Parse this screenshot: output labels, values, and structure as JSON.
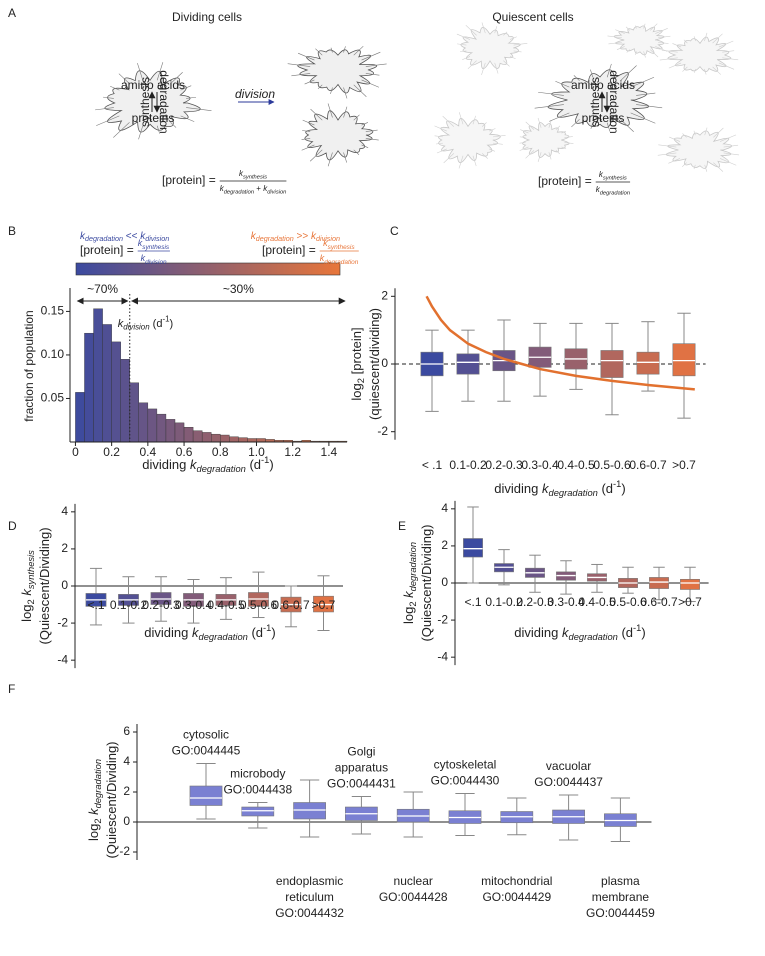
{
  "panel_labels": [
    "A",
    "B",
    "C",
    "D",
    "E",
    "F"
  ],
  "diagram": {
    "left_title": "Dividing cells",
    "right_title": "Quiescent cells",
    "amino_acids": "amino acids",
    "proteins": "proteins",
    "synthesis": "synthesis",
    "degradation": "degradation",
    "division": "division",
    "eq_left": {
      "lhs": "[protein] =",
      "num": [
        {
          "t": "k",
          "s": "i"
        },
        {
          "t": "synthesis",
          "s": "isub"
        }
      ],
      "den": [
        {
          "t": "k",
          "s": "i"
        },
        {
          "t": "degradation",
          "s": "isub"
        },
        {
          "t": " + "
        },
        {
          "t": "k",
          "s": "i"
        },
        {
          "t": "division",
          "s": "isub"
        }
      ]
    },
    "eq_right": {
      "lhs": "[protein] =",
      "num": [
        {
          "t": "k",
          "s": "i"
        },
        {
          "t": "synthesis",
          "s": "isub"
        }
      ],
      "den": [
        {
          "t": "k",
          "s": "i"
        },
        {
          "t": "degradation",
          "s": "isub"
        }
      ]
    },
    "accent_color": "#e07a2e",
    "division_color": "#2b3a9a"
  },
  "chart_data": [
    {
      "type": "histogram",
      "colorbar": {
        "colors": [
          "#3b4aa0",
          "#e8763a"
        ],
        "left": {
          "relation": [
            {
              "t": "k",
              "s": "i"
            },
            {
              "t": "degradation",
              "s": "isub"
            },
            {
              "t": " << "
            },
            {
              "t": "k",
              "s": "i"
            },
            {
              "t": "division",
              "s": "isub"
            }
          ],
          "lhs": "[protein] =",
          "num": [
            {
              "t": "k",
              "s": "i"
            },
            {
              "t": "synthesis",
              "s": "isub"
            }
          ],
          "den": [
            {
              "t": "k",
              "s": "i"
            },
            {
              "t": "division",
              "s": "isub"
            }
          ]
        },
        "right": {
          "relation": [
            {
              "t": "k",
              "s": "i"
            },
            {
              "t": "degradation",
              "s": "isub"
            },
            {
              "t": " >> "
            },
            {
              "t": "k",
              "s": "i"
            },
            {
              "t": "division",
              "s": "isub"
            }
          ],
          "lhs": "[protein] =",
          "num": [
            {
              "t": "k",
              "s": "i"
            },
            {
              "t": "synthesis",
              "s": "isub"
            }
          ],
          "den": [
            {
              "t": "k",
              "s": "i"
            },
            {
              "t": "degradation",
              "s": "isub"
            }
          ]
        }
      },
      "x_label": [
        {
          "t": "dividing "
        },
        {
          "t": "k",
          "s": "i"
        },
        {
          "t": "degradation",
          "s": "isub"
        },
        {
          "t": " (d"
        },
        {
          "t": "-1",
          "s": "sup"
        },
        {
          "t": ")"
        }
      ],
      "y_label": "fraction of population",
      "bins": [
        0,
        0.05,
        0.1,
        0.15,
        0.2,
        0.25,
        0.3,
        0.35,
        0.4,
        0.45,
        0.5,
        0.55,
        0.6,
        0.65,
        0.7,
        0.75,
        0.8,
        0.85,
        0.9,
        0.95,
        1.0,
        1.05,
        1.1,
        1.15,
        1.2,
        1.25,
        1.3,
        1.35,
        1.4,
        1.45,
        1.5
      ],
      "counts": [
        0.057,
        0.125,
        0.153,
        0.135,
        0.115,
        0.095,
        0.068,
        0.045,
        0.038,
        0.032,
        0.026,
        0.022,
        0.017,
        0.013,
        0.011,
        0.009,
        0.008,
        0.006,
        0.005,
        0.004,
        0.004,
        0.003,
        0.002,
        0.002,
        0.001,
        0.002,
        0.001,
        0.001,
        0.001,
        0.001
      ],
      "xlim": [
        -0.03,
        1.5
      ],
      "ylim": [
        0,
        0.17
      ],
      "xticks": [
        0,
        0.2,
        0.4,
        0.6,
        0.8,
        {
          "value": 1,
          "label": "1.0"
        },
        1.2,
        1.4
      ],
      "yticks": [
        0.05,
        {
          "value": 0.1,
          "label": "0.10"
        },
        0.15
      ],
      "division_line": 0.3,
      "division_label": [
        {
          "t": "k",
          "s": "i"
        },
        {
          "t": "division",
          "s": "isub"
        },
        {
          "t": " (d"
        },
        {
          "t": "-1",
          "s": "sup"
        },
        {
          "t": ")"
        }
      ],
      "left_share": "~70%",
      "right_share": "~30%"
    },
    {
      "type": "box",
      "x_label": [
        {
          "t": "dividing "
        },
        {
          "t": "k",
          "s": "i"
        },
        {
          "t": "degradation",
          "s": "isub"
        },
        {
          "t": " (d"
        },
        {
          "t": "-1",
          "s": "sup"
        },
        {
          "t": ")"
        }
      ],
      "y_label": [
        [
          {
            "t": "log"
          },
          {
            "t": "2",
            "s": "sub"
          },
          {
            "t": " [protein]"
          }
        ],
        [
          {
            "t": "(quiescent/dividing)"
          }
        ]
      ],
      "categories": [
        "< .1",
        "0.1-0.2",
        "0.2-0.3",
        "0.3-0.4",
        "0.4-0.5",
        "0.5-0.6",
        "0.6-0.7",
        ">0.7"
      ],
      "boxes": [
        {
          "min": -1.4,
          "q1": -0.35,
          "median": 0,
          "q3": 0.35,
          "max": 1.0
        },
        {
          "min": -1.1,
          "q1": -0.3,
          "median": 0.05,
          "q3": 0.3,
          "max": 1.0
        },
        {
          "min": -1.1,
          "q1": -0.2,
          "median": 0.1,
          "q3": 0.4,
          "max": 1.3
        },
        {
          "min": -0.95,
          "q1": -0.1,
          "median": 0.2,
          "q3": 0.5,
          "max": 1.2
        },
        {
          "min": -0.75,
          "q1": -0.15,
          "median": 0.15,
          "q3": 0.45,
          "max": 1.2
        },
        {
          "min": -1.5,
          "q1": -0.4,
          "median": 0.1,
          "q3": 0.4,
          "max": 1.2
        },
        {
          "min": -0.8,
          "q1": -0.3,
          "median": 0.05,
          "q3": 0.35,
          "max": 1.25
        },
        {
          "min": -1.6,
          "q1": -0.35,
          "median": 0.1,
          "q3": 0.6,
          "max": 1.5
        }
      ],
      "ylim": [
        -2.6,
        2.6
      ],
      "yticks": [
        -2,
        0,
        2
      ],
      "reference_line": {
        "value": 0,
        "style": "dashed"
      },
      "color_range": [
        "#3b4aa0",
        "#e07244"
      ],
      "curve": {
        "color": "#e2712f",
        "x": [
          -0.15,
          0,
          0.25,
          0.5,
          0.75,
          1,
          1.5,
          2,
          2.5,
          3,
          4,
          5,
          6,
          7,
          7.3
        ],
        "values": [
          2.0,
          1.7,
          1.3,
          1.0,
          0.8,
          0.6,
          0.35,
          0.15,
          0,
          -0.15,
          -0.35,
          -0.5,
          -0.62,
          -0.72,
          -0.75
        ]
      }
    },
    {
      "type": "box",
      "x_label": [
        {
          "t": "dividing "
        },
        {
          "t": "k",
          "s": "i"
        },
        {
          "t": "degradation",
          "s": "isub"
        },
        {
          "t": " (d"
        },
        {
          "t": "-1",
          "s": "sup"
        },
        {
          "t": ")"
        }
      ],
      "y_label": [
        [
          {
            "t": "log"
          },
          {
            "t": "2",
            "s": "sub"
          },
          {
            "t": " "
          },
          {
            "t": "k",
            "s": "i"
          },
          {
            "t": "synthesis",
            "s": "isub"
          }
        ],
        [
          {
            "t": "(Quiescent/Dividing)"
          }
        ]
      ],
      "categories": [
        "<.1",
        "0.1-0.2",
        "0.2-0.3",
        "0.3-0.4",
        "0.4-0.5",
        "0.5-0.6",
        "0.6-0.7",
        ">0.7"
      ],
      "boxes": [
        {
          "min": -2.1,
          "q1": -1.1,
          "median": -0.75,
          "q3": -0.4,
          "max": 0.95
        },
        {
          "min": -2.0,
          "q1": -1.05,
          "median": -0.75,
          "q3": -0.45,
          "max": 0.5
        },
        {
          "min": -1.9,
          "q1": -1.0,
          "median": -0.7,
          "q3": -0.35,
          "max": 0.5
        },
        {
          "min": -2.0,
          "q1": -1.1,
          "median": -0.75,
          "q3": -0.4,
          "max": 0.35
        },
        {
          "min": -1.8,
          "q1": -1.05,
          "median": -0.75,
          "q3": -0.45,
          "max": 0.45
        },
        {
          "min": -1.7,
          "q1": -1.1,
          "median": -0.7,
          "q3": -0.35,
          "max": 0.75
        },
        {
          "min": -2.2,
          "q1": -1.4,
          "median": -1.0,
          "q3": -0.6,
          "max": 0.0
        },
        {
          "min": -2.4,
          "q1": -1.4,
          "median": -1.0,
          "q3": -0.55,
          "max": 0.55
        }
      ],
      "ylim": [
        -4.8,
        4.8
      ],
      "yticks": [
        -4,
        -2,
        0,
        2,
        4
      ],
      "reference_line": {
        "value": 0,
        "style": "solid"
      },
      "color_range": [
        "#3b4aa0",
        "#e07244"
      ]
    },
    {
      "type": "box",
      "x_label": [
        {
          "t": "dividing "
        },
        {
          "t": "k",
          "s": "i"
        },
        {
          "t": "degradation",
          "s": "isub"
        },
        {
          "t": " (d"
        },
        {
          "t": "-1",
          "s": "sup"
        },
        {
          "t": ")"
        }
      ],
      "y_label": [
        [
          {
            "t": "log"
          },
          {
            "t": "2",
            "s": "sub"
          },
          {
            "t": " "
          },
          {
            "t": "k",
            "s": "i"
          },
          {
            "t": "degradation",
            "s": "isub"
          }
        ],
        [
          {
            "t": "(Quiescent/Dividing)"
          }
        ]
      ],
      "categories": [
        "<.1",
        "0.1-0.2",
        "0.2-0.3",
        "0.3-0.4",
        "0.4-0.5",
        "0.5-0.6",
        "0.6-0.7",
        ">0.7"
      ],
      "boxes": [
        {
          "min": 0.0,
          "q1": 1.4,
          "median": 1.85,
          "q3": 2.4,
          "max": 4.1
        },
        {
          "min": -0.1,
          "q1": 0.6,
          "median": 0.85,
          "q3": 1.05,
          "max": 1.8
        },
        {
          "min": -0.5,
          "q1": 0.3,
          "median": 0.55,
          "q3": 0.8,
          "max": 1.5
        },
        {
          "min": -0.6,
          "q1": 0.15,
          "median": 0.4,
          "q3": 0.6,
          "max": 1.2
        },
        {
          "min": -0.5,
          "q1": 0.1,
          "median": 0.3,
          "q3": 0.5,
          "max": 1.0
        },
        {
          "min": -0.55,
          "q1": -0.25,
          "median": 0.0,
          "q3": 0.25,
          "max": 0.85
        },
        {
          "min": -0.9,
          "q1": -0.3,
          "median": 0.05,
          "q3": 0.3,
          "max": 0.85
        },
        {
          "min": -1.0,
          "q1": -0.35,
          "median": 0.0,
          "q3": 0.2,
          "max": 0.85
        }
      ],
      "ylim": [
        -4.8,
        4.8
      ],
      "yticks": [
        -4,
        -2,
        0,
        2,
        4
      ],
      "reference_line": {
        "value": 0,
        "style": "solid"
      },
      "color_range": [
        "#3b4aa0",
        "#e07244"
      ]
    },
    {
      "type": "box",
      "y_label": [
        [
          {
            "t": "log"
          },
          {
            "t": "2",
            "s": "sub"
          },
          {
            "t": " "
          },
          {
            "t": "k",
            "s": "i"
          },
          {
            "t": "degradation",
            "s": "isub"
          }
        ],
        [
          {
            "t": "(Quiescent/Dividing)"
          }
        ]
      ],
      "categories": [
        [
          "cytosolic",
          "GO:0044445"
        ],
        [
          "microbody",
          "GO:0044438"
        ],
        [
          "endoplasmic",
          "reticulum",
          "GO:0044432"
        ],
        [
          "Golgi",
          "apparatus",
          "GO:0044431"
        ],
        [
          "nuclear",
          "GO:0044428"
        ],
        [
          "cytoskeletal",
          "GO:0044430"
        ],
        [
          "mitochondrial",
          "GO:0044429"
        ],
        [
          "vacuolar",
          "GO:0044437"
        ],
        [
          "plasma",
          "membrane",
          "GO:0044459"
        ]
      ],
      "boxes": [
        {
          "min": 0.2,
          "q1": 1.1,
          "median": 1.6,
          "q3": 2.4,
          "max": 3.9
        },
        {
          "min": -0.4,
          "q1": 0.4,
          "median": 0.75,
          "q3": 1.0,
          "max": 1.3
        },
        {
          "min": -1.0,
          "q1": 0.2,
          "median": 0.8,
          "q3": 1.3,
          "max": 2.8
        },
        {
          "min": -0.8,
          "q1": 0.1,
          "median": 0.55,
          "q3": 1.0,
          "max": 1.7
        },
        {
          "min": -1.0,
          "q1": 0.0,
          "median": 0.4,
          "q3": 0.85,
          "max": 2.0
        },
        {
          "min": -0.9,
          "q1": -0.1,
          "median": 0.3,
          "q3": 0.75,
          "max": 1.9
        },
        {
          "min": -0.85,
          "q1": -0.05,
          "median": 0.35,
          "q3": 0.7,
          "max": 1.6
        },
        {
          "min": -1.2,
          "q1": -0.1,
          "median": 0.35,
          "q3": 0.8,
          "max": 1.8
        },
        {
          "min": -1.3,
          "q1": -0.3,
          "median": 0.1,
          "q3": 0.55,
          "max": 1.6
        }
      ],
      "ylim": [
        -2.8,
        6.8
      ],
      "yticks": [
        -2,
        0,
        2,
        4,
        6
      ],
      "reference_line": {
        "value": 0,
        "style": "solid"
      },
      "color": "#7a80d2"
    }
  ]
}
